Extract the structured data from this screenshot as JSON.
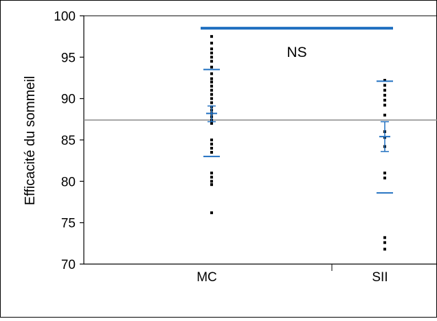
{
  "chart_data": {
    "type": "scatter",
    "title": "",
    "xlabel": "",
    "ylabel": "Efficacité du sommeil",
    "categories": [
      "MC",
      "SII"
    ],
    "ylim": [
      70,
      100
    ],
    "yticks": [
      70,
      75,
      80,
      85,
      90,
      95,
      100
    ],
    "reference_line": 87.4,
    "significance": {
      "label": "NS",
      "y": 98.5
    },
    "groups": [
      {
        "category": "MC",
        "points": [
          97.5,
          96.7,
          96.0,
          95.5,
          95.0,
          94.5,
          93.8,
          93.0,
          92.4,
          92.0,
          91.5,
          91.0,
          90.5,
          90.0,
          89.5,
          89.0,
          88.6,
          88.2,
          87.8,
          87.4,
          87.0,
          85.0,
          84.5,
          84.0,
          83.5,
          81.0,
          80.5,
          80.0,
          79.6,
          76.2
        ],
        "mean": 88.2,
        "sd_upper": 93.5,
        "sd_lower": 83.0,
        "ci_upper": 89.1,
        "ci_lower": 87.2
      },
      {
        "category": "SII",
        "points": [
          92.2,
          91.6,
          91.0,
          90.4,
          89.8,
          89.2,
          88.0,
          86.0,
          85.3,
          84.2,
          81.0,
          80.4,
          73.2,
          72.6,
          71.8
        ],
        "mean": 85.4,
        "sd_upper": 92.1,
        "sd_lower": 78.6,
        "ci_upper": 87.2,
        "ci_lower": 83.6
      }
    ]
  }
}
